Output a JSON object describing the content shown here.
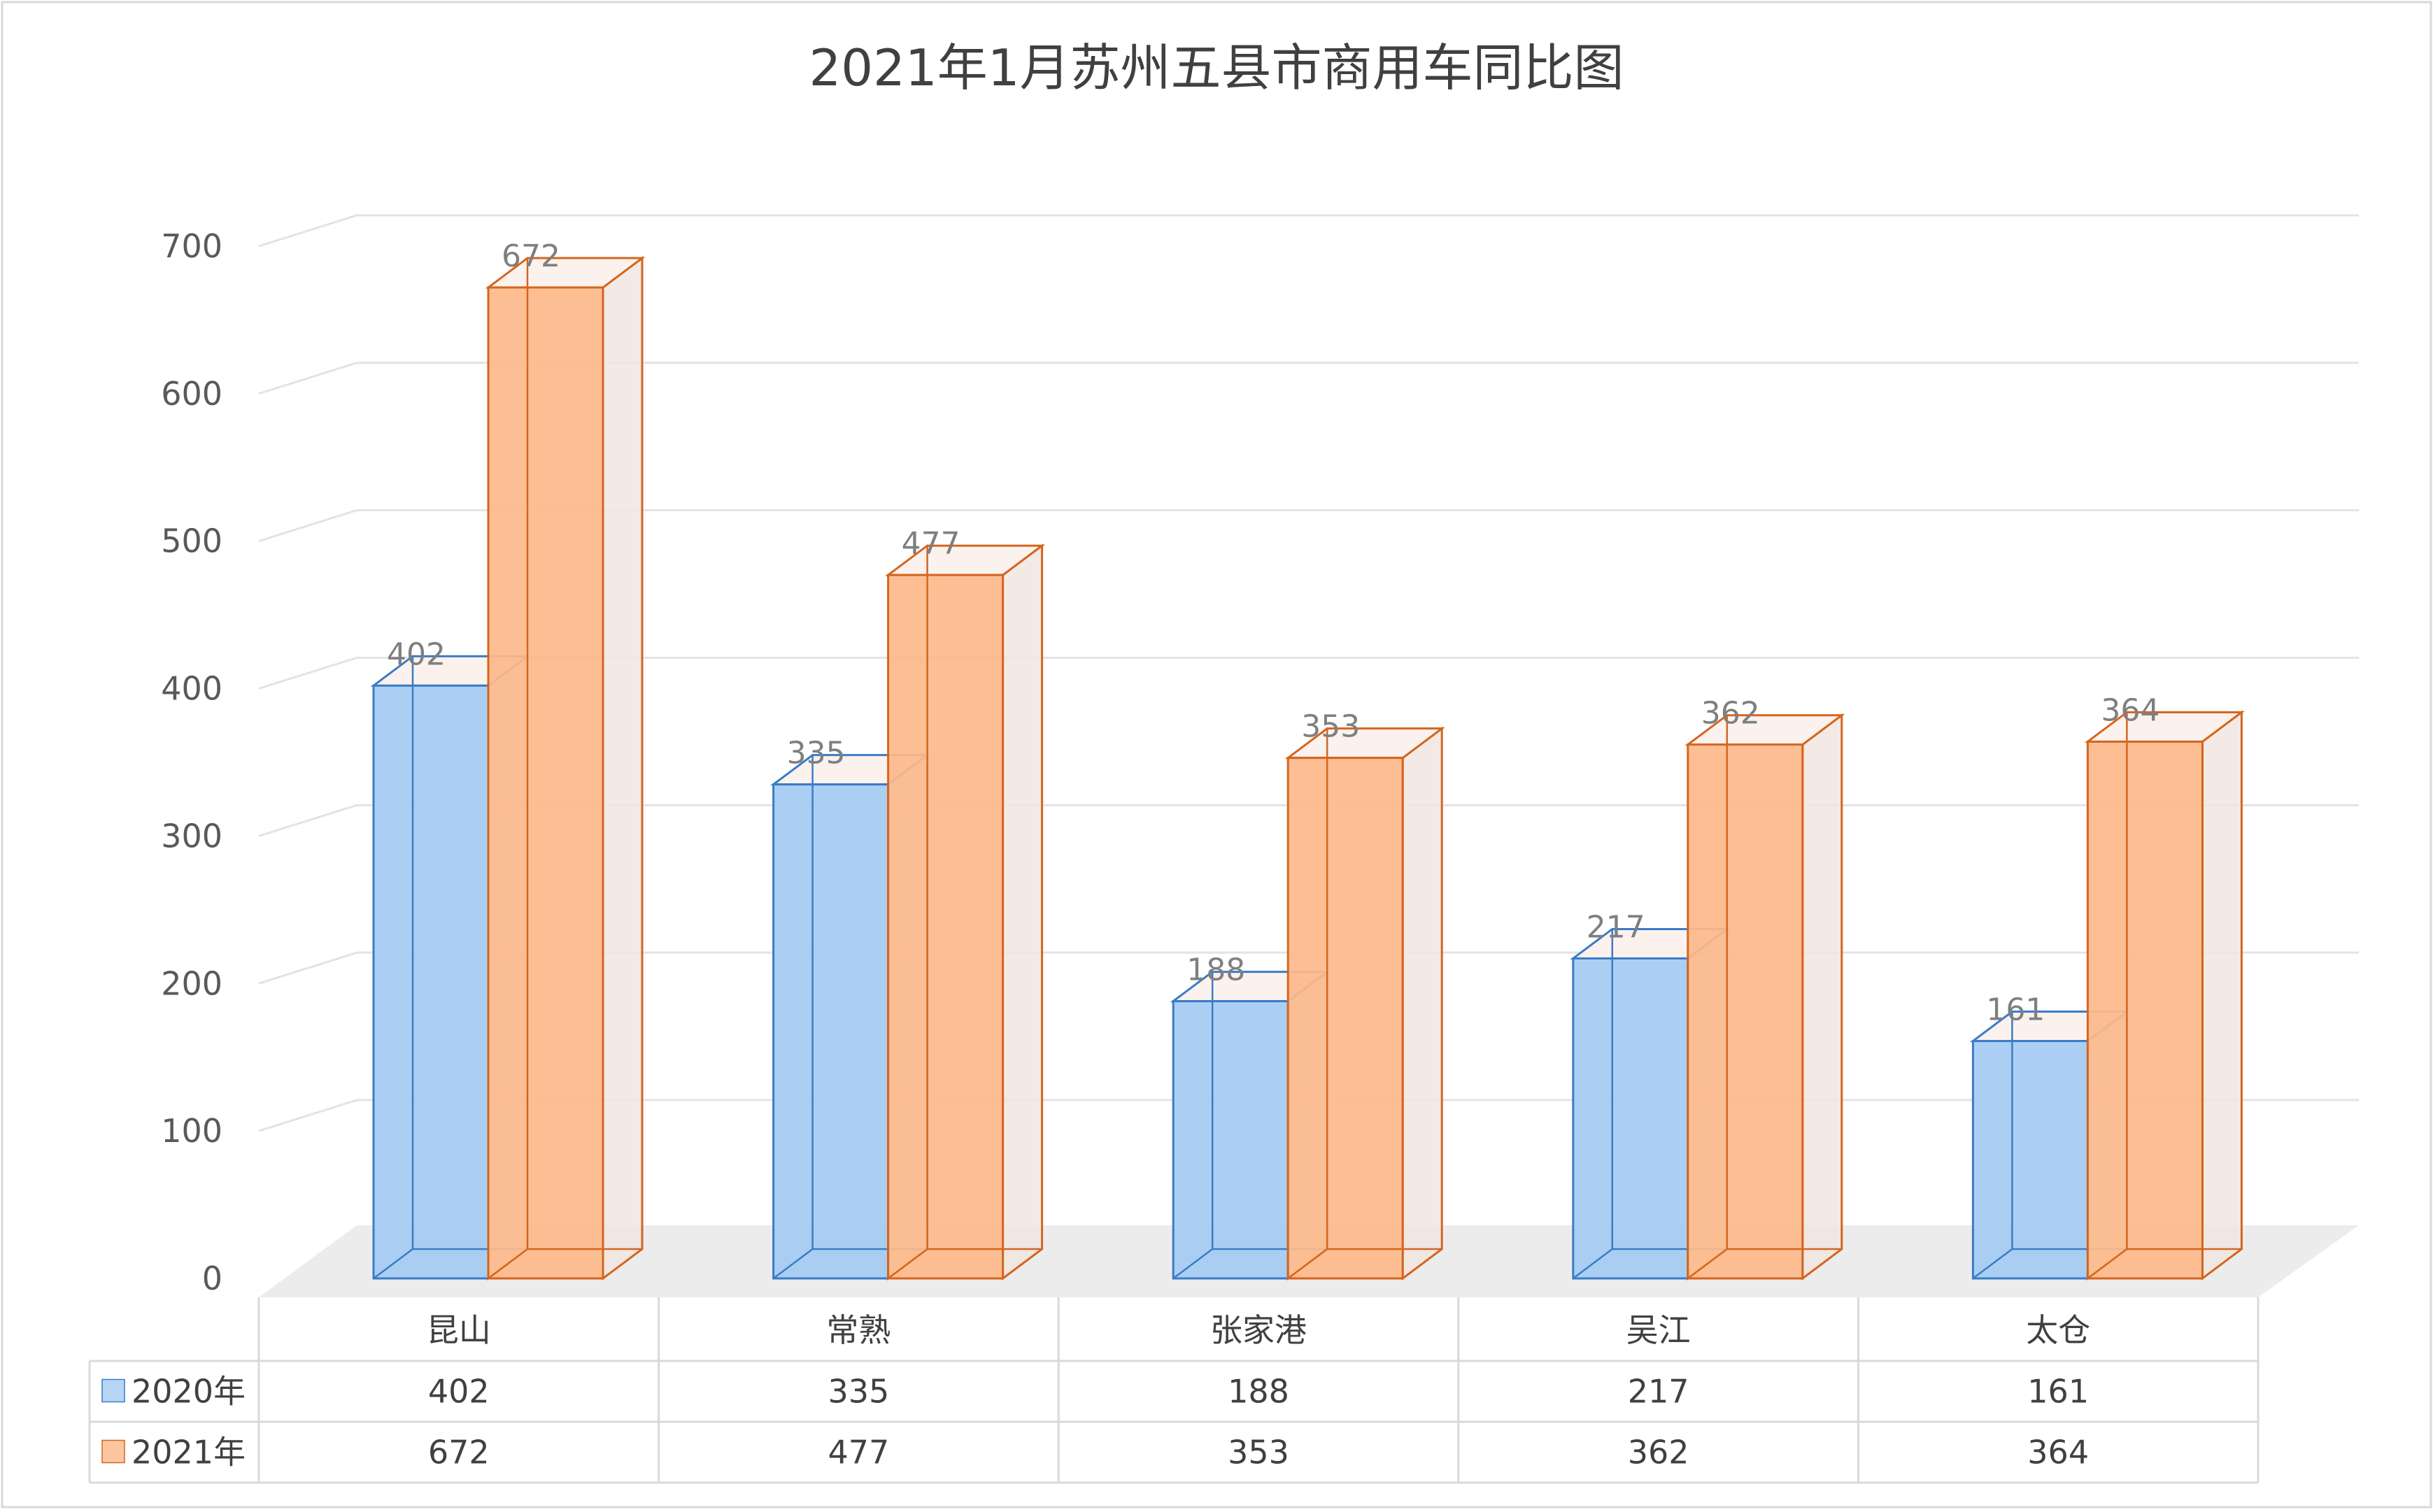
{
  "chart_data": {
    "type": "bar",
    "title": "2021年1月苏州五县市商用车同比图",
    "categories": [
      "昆山",
      "常熟",
      "张家港",
      "吴江",
      "太仓"
    ],
    "series": [
      {
        "name": "2020年",
        "values": [
          402,
          335,
          188,
          217,
          161
        ],
        "color": "#a4cbf2",
        "edge": "#3a7cc7"
      },
      {
        "name": "2021年",
        "values": [
          672,
          477,
          353,
          362,
          364
        ],
        "color": "#fdb88a",
        "edge": "#d4661f"
      }
    ],
    "yticks": [
      0,
      100,
      200,
      300,
      400,
      500,
      600,
      700
    ],
    "ylim": [
      0,
      700
    ],
    "grid": true,
    "legend": "data-table",
    "data_labels": true
  },
  "colors": {
    "gridline": "#e3e3e3",
    "floor": "#ececec",
    "side_face": "#f2e6e1",
    "table_border": "#d9d9d9"
  }
}
